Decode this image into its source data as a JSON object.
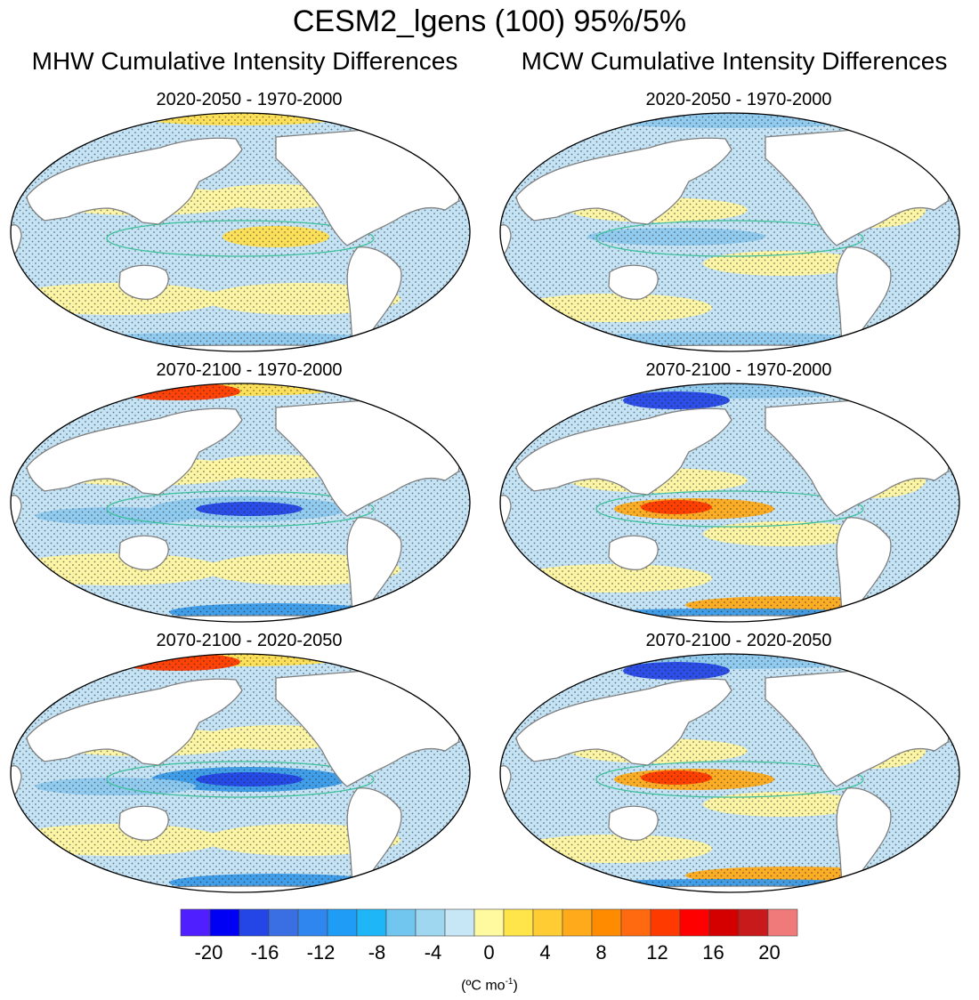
{
  "title": "CESM2_lgens (100) 95%/5%",
  "columns": {
    "left": "MHW Cumulative Intensity Differences",
    "right": "MCW Cumulative Intensity Differences"
  },
  "panels": [
    {
      "id": "mhw-1",
      "label": "2020-2050 - 1970-2000",
      "type": "MHW",
      "period": 1
    },
    {
      "id": "mcw-1",
      "label": "2020-2050 - 1970-2000",
      "type": "MCW",
      "period": 1
    },
    {
      "id": "mhw-2",
      "label": "2070-2100 - 1970-2000",
      "type": "MHW",
      "period": 2
    },
    {
      "id": "mcw-2",
      "label": "2070-2100 - 1970-2000",
      "type": "MCW",
      "period": 2
    },
    {
      "id": "mhw-3",
      "label": "2070-2100 - 2020-2050",
      "type": "MHW",
      "period": 3
    },
    {
      "id": "mcw-3",
      "label": "2070-2100 - 2020-2050",
      "type": "MCW",
      "period": 3
    }
  ],
  "colorbar": {
    "colors": [
      "#4f1fff",
      "#0000f5",
      "#2546e6",
      "#3a6fe3",
      "#2f86ef",
      "#1f9cf5",
      "#1fb6f7",
      "#70c6ef",
      "#9fd6f0",
      "#c7e7f7",
      "#fffaa0",
      "#ffe44a",
      "#ffcc33",
      "#ffaa1a",
      "#ff8c00",
      "#ff6a10",
      "#ff3a00",
      "#ff0000",
      "#d40000",
      "#c81a1a",
      "#f07a7a"
    ],
    "tick_labels": [
      "-20",
      "-16",
      "-12",
      "-8",
      "-4",
      "0",
      "4",
      "8",
      "12",
      "16",
      "20"
    ],
    "tick_values": [
      -20,
      -16,
      -12,
      -8,
      -4,
      0,
      4,
      8,
      12,
      16,
      20
    ],
    "range": [
      -22,
      22
    ],
    "unit": "(ºC mo",
    "unit_sup": "-1",
    "unit_close": ")"
  },
  "map_colors": {
    "land": "#ffffff",
    "coast": "#808080",
    "pos_light": "#fff6a0",
    "pos_mid": "#ffdf50",
    "pos_strong": "#ffaa1a",
    "pos_hot": "#ff3a00",
    "neg_light": "#c4e3f5",
    "neg_mid": "#8ecaef",
    "neg_strong": "#3a9ae8",
    "neg_deep": "#2546e6",
    "contour": "#3cc09a",
    "stipple": "#1a1a1a"
  }
}
